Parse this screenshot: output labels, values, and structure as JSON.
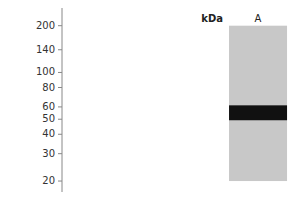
{
  "chart_data": {
    "type": "blot",
    "ylabel": "kDa",
    "categories": [
      "A"
    ],
    "values": [
      55
    ],
    "color": "#111111",
    "log": "y",
    "ylim": [
      17,
      260
    ],
    "yticks": [
      20,
      30,
      40,
      50,
      60,
      80,
      100,
      140,
      200
    ]
  }
}
